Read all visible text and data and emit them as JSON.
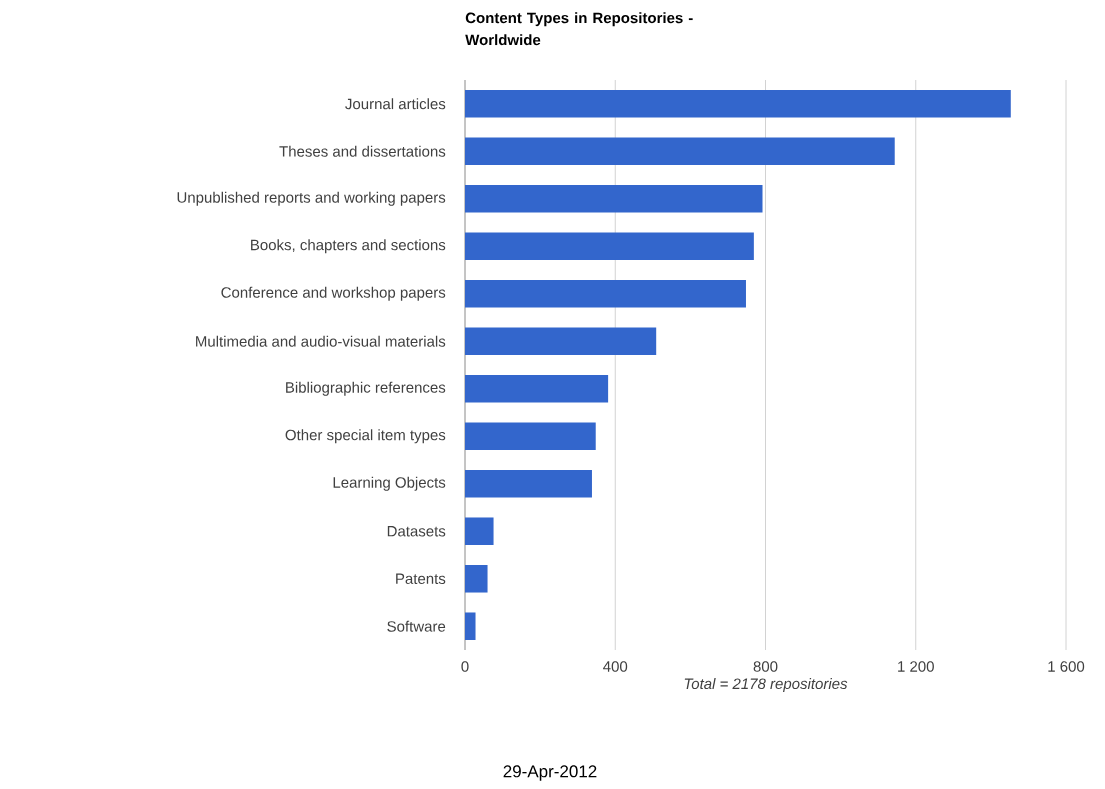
{
  "chart_data": {
    "type": "bar",
    "orientation": "horizontal",
    "title": "Content Types in Repositories - Worldwide",
    "categories": [
      "Journal articles",
      "Theses and dissertations",
      "Unpublished reports and working papers",
      "Books, chapters and sections",
      "Conference and workshop papers",
      "Multimedia and audio-visual materials",
      "Bibliographic references",
      "Other special item types",
      "Learning Objects",
      "Datasets",
      "Patents",
      "Software"
    ],
    "values": [
      1453,
      1144,
      792,
      769,
      748,
      509,
      381,
      348,
      338,
      76,
      60,
      28
    ],
    "color": "#3366cc",
    "xlim": [
      0,
      1600
    ],
    "xticks": [
      0,
      400,
      800,
      {
        "value": 1200,
        "label": "1 200"
      },
      {
        "value": 1600,
        "label": "1 600"
      }
    ],
    "xlabel": "Total = 2178 repositories",
    "grid": "x",
    "annotations": [
      "29-Apr-2012"
    ]
  }
}
